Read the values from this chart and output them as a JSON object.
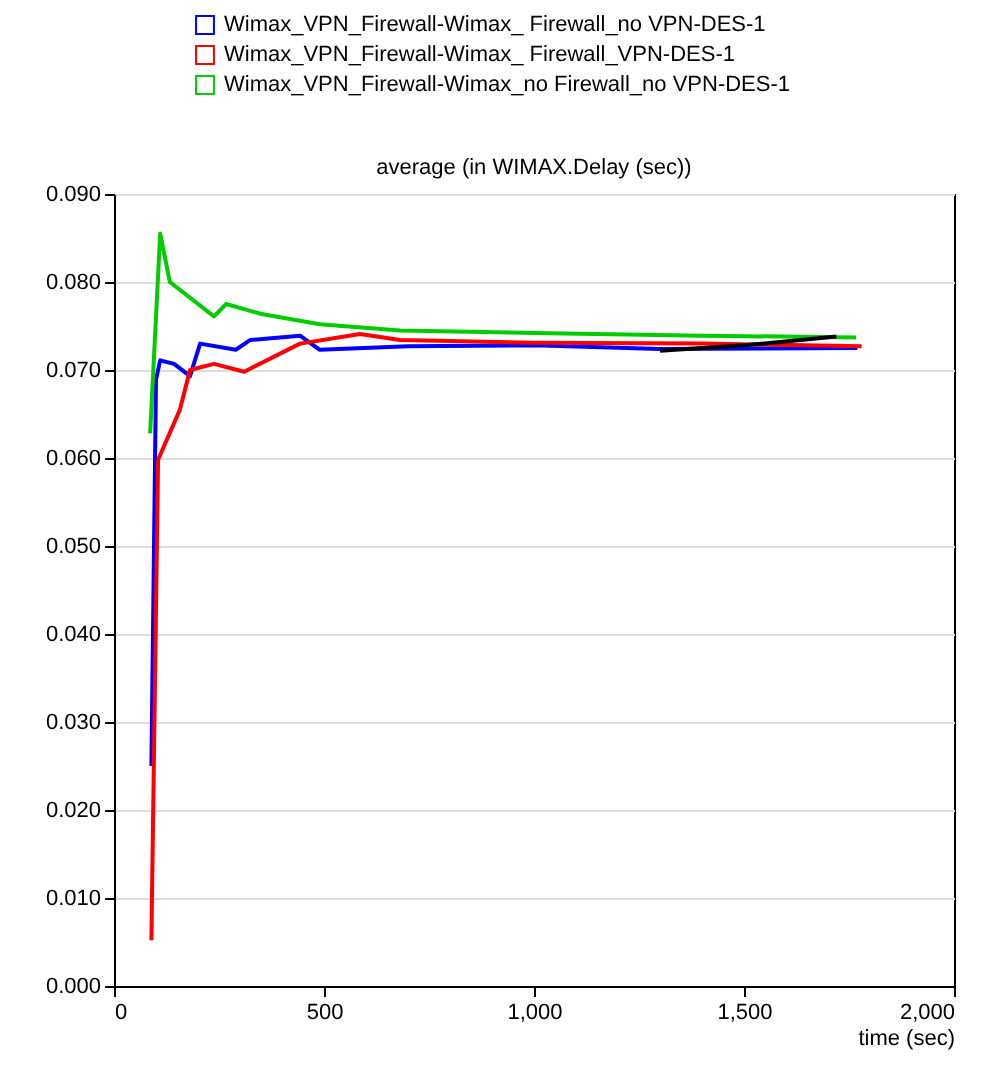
{
  "chart_data": {
    "type": "line",
    "title": "average (in WIMAX.Delay (sec))",
    "xlabel": "time (sec)",
    "xlim": [
      0,
      2000
    ],
    "xticks": [
      0,
      500,
      {
        "value": 1000,
        "label": "1,000"
      },
      {
        "value": 1500,
        "label": "1,500"
      },
      {
        "value": 2000,
        "label": "2,000"
      }
    ],
    "ylim": [
      0,
      0.09
    ],
    "yticks": [
      {
        "value": 0,
        "label": "0.000"
      },
      {
        "value": 0.01,
        "label": "0.010"
      },
      {
        "value": 0.02,
        "label": "0.020"
      },
      {
        "value": 0.03,
        "label": "0.030"
      },
      {
        "value": 0.04,
        "label": "0.040"
      },
      {
        "value": 0.05,
        "label": "0.050"
      },
      {
        "value": 0.06,
        "label": "0.060"
      },
      {
        "value": 0.07,
        "label": "0.070"
      },
      {
        "value": 0.08,
        "label": "0.080"
      },
      {
        "value": 0.09,
        "label": "0.090"
      }
    ],
    "grid": "y",
    "legend": "top left",
    "line_style": "solid",
    "series": [
      {
        "name": "Wimax_VPN_Firewall-Wimax_ Firewall_no VPN-DES-1",
        "color": "#0000ff",
        "x": [
          89,
          100,
          110,
          143,
          181,
          205,
          290,
          324,
          443,
          490,
          700,
          1000,
          1300,
          1770
        ],
        "values": [
          0.025,
          0.0689,
          0.0711,
          0.0707,
          0.0693,
          0.073,
          0.0723,
          0.0734,
          0.0739,
          0.0723,
          0.0727,
          0.0728,
          0.0724,
          0.0725
        ]
      },
      {
        "name": "Wimax_VPN_Firewall-Wimax_ Firewall_VPN-DES-1",
        "color": "#ff0000",
        "x": [
          89,
          105,
          157,
          181,
          238,
          310,
          443,
          586,
          681,
          1000,
          1400,
          1780
        ],
        "values": [
          0.0052,
          0.0598,
          0.0655,
          0.07,
          0.0707,
          0.0698,
          0.073,
          0.0741,
          0.0734,
          0.0731,
          0.073,
          0.0727
        ]
      },
      {
        "name": "Wimax_VPN_Firewall-Wimax_no Firewall_no VPN-DES-1",
        "color": "#00cc00",
        "x": [
          86,
          110,
          133,
          238,
          267,
          348,
          490,
          681,
          1000,
          1400,
          1767
        ],
        "values": [
          0.0628,
          0.0855,
          0.08,
          0.0761,
          0.0775,
          0.0764,
          0.0752,
          0.0745,
          0.0742,
          0.0739,
          0.0737
        ]
      },
      {
        "color": "#000000",
        "x": [
          1300,
          1500,
          1720
        ],
        "values": [
          0.0722,
          0.0728,
          0.0738
        ]
      }
    ]
  }
}
